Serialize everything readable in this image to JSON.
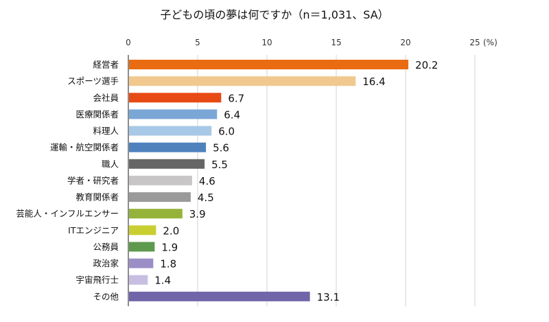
{
  "chart_data": {
    "type": "bar",
    "orientation": "horizontal",
    "title": "子どもの頃の夢は何ですか（n＝1,031、SA）",
    "xlabel": "",
    "ylabel": "",
    "unit": "(%)",
    "xlim": [
      0,
      25
    ],
    "ticks": [
      0,
      5,
      10,
      15,
      20,
      25
    ],
    "grid": true,
    "categories": [
      "経営者",
      "スポーツ選手",
      "会社員",
      "医療関係者",
      "料理人",
      "運輸・航空関係者",
      "職人",
      "学者・研究者",
      "教育関係者",
      "芸能人・インフルエンサー",
      "ITエンジニア",
      "公務員",
      "政治家",
      "宇宙飛行士",
      "その他"
    ],
    "values": [
      20.2,
      16.4,
      6.7,
      6.4,
      6.0,
      5.6,
      5.5,
      4.6,
      4.5,
      3.9,
      2.0,
      1.9,
      1.8,
      1.4,
      13.1
    ],
    "labels": [
      "20.2",
      "16.4",
      "6.7",
      "6.4",
      "6.0",
      "5.6",
      "5.5",
      "4.6",
      "4.5",
      "3.9",
      "2.0",
      "1.9",
      "1.8",
      "1.4",
      "13.1"
    ],
    "colors": [
      "#E96C12",
      "#F1C98F",
      "#E84A14",
      "#7BA7D6",
      "#A7C8E6",
      "#4F81BD",
      "#666666",
      "#C8C6C6",
      "#9A9A9A",
      "#95B33A",
      "#CACF31",
      "#5E9A4E",
      "#9B8EC7",
      "#C8BEE1",
      "#7065A8"
    ]
  }
}
